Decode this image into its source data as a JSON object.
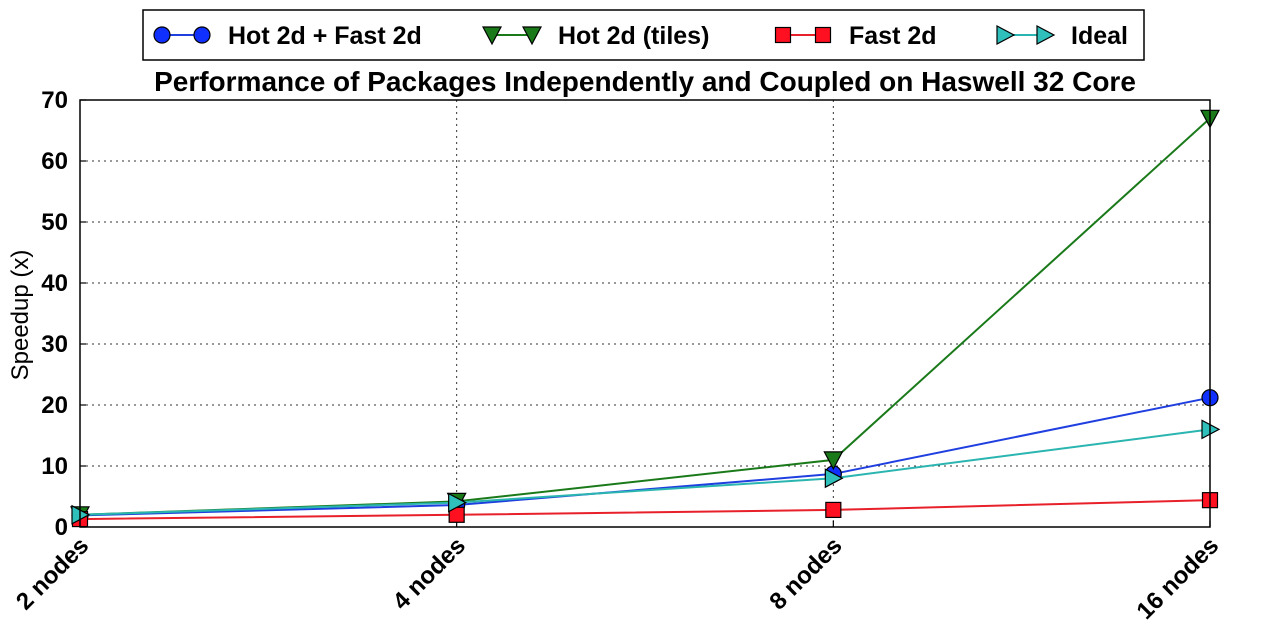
{
  "chart_data": {
    "type": "line",
    "title": "Performance of Packages Independently and Coupled on Haswell 32 Core",
    "xlabel": "",
    "ylabel": "Speedup (x)",
    "categories": [
      "2 nodes",
      "4 nodes",
      "8 nodes",
      "16 nodes"
    ],
    "ylim": [
      0,
      70
    ],
    "yticks": [
      0,
      10,
      20,
      30,
      40,
      50,
      60,
      70
    ],
    "grid": true,
    "legend_position": "top",
    "series": [
      {
        "name": "Hot 2d + Fast 2d",
        "values": [
          1.9,
          3.6,
          8.7,
          21.2
        ],
        "color": "#1f3fe0",
        "fill": "#1030ff",
        "marker": "circle"
      },
      {
        "name": "Hot 2d (tiles)",
        "values": [
          2.0,
          4.2,
          11.0,
          67.0
        ],
        "color": "#1a7a1a",
        "fill": "#1a7a1a",
        "marker": "triangle-down"
      },
      {
        "name": "Fast 2d",
        "values": [
          1.3,
          2.0,
          2.8,
          4.4
        ],
        "color": "#e8202a",
        "fill": "#ff1020",
        "marker": "square"
      },
      {
        "name": "Ideal",
        "values": [
          2,
          4,
          8,
          16
        ],
        "color": "#2ab5b0",
        "fill": "#30c0bb",
        "marker": "triangle-right"
      }
    ]
  }
}
